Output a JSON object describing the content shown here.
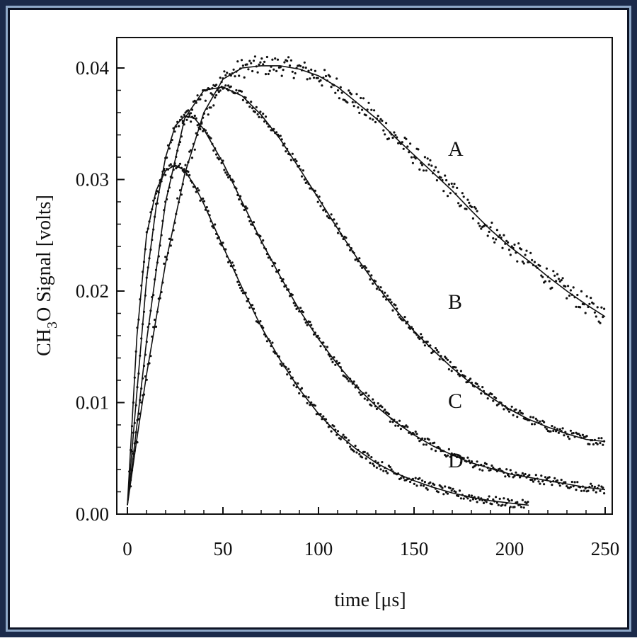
{
  "chart_data": {
    "type": "scatter",
    "title": "",
    "xlabel": "time [μs]",
    "ylabel_main": "CH",
    "ylabel_sub": "3",
    "ylabel_rest": "O Signal [volts]",
    "xlim": [
      0,
      250
    ],
    "ylim": [
      0.0,
      0.042
    ],
    "xticks": [
      "0",
      "50",
      "100",
      "150",
      "200",
      "250"
    ],
    "yticks": [
      "0.00",
      "0.01",
      "0.02",
      "0.03",
      "0.04"
    ],
    "grid": false,
    "legend": "none",
    "series": [
      {
        "name": "A",
        "x": [
          0,
          5,
          10,
          20,
          30,
          40,
          50,
          60,
          70,
          80,
          90,
          100,
          110,
          120,
          130,
          140,
          150,
          160,
          170,
          180,
          190,
          200,
          210,
          220,
          230,
          240,
          250
        ],
        "y": [
          0.0008,
          0.0068,
          0.0125,
          0.0225,
          0.0305,
          0.036,
          0.039,
          0.04,
          0.0402,
          0.0402,
          0.0399,
          0.0393,
          0.0383,
          0.0369,
          0.0355,
          0.0338,
          0.0322,
          0.0306,
          0.029,
          0.0272,
          0.0255,
          0.024,
          0.0227,
          0.0213,
          0.02,
          0.0188,
          0.0177
        ]
      },
      {
        "name": "B",
        "x": [
          0,
          5,
          10,
          20,
          30,
          40,
          50,
          60,
          70,
          80,
          90,
          100,
          110,
          120,
          130,
          140,
          150,
          160,
          170,
          180,
          190,
          200,
          210,
          220,
          230,
          240,
          250
        ],
        "y": [
          0.0008,
          0.008,
          0.0155,
          0.028,
          0.0355,
          0.038,
          0.0383,
          0.0375,
          0.0358,
          0.0336,
          0.031,
          0.0283,
          0.0256,
          0.023,
          0.0206,
          0.0184,
          0.0164,
          0.0147,
          0.0131,
          0.0117,
          0.0105,
          0.0094,
          0.0085,
          0.0078,
          0.0072,
          0.0067,
          0.0065
        ]
      },
      {
        "name": "C",
        "x": [
          0,
          5,
          10,
          15,
          20,
          25,
          30,
          35,
          40,
          50,
          60,
          70,
          80,
          90,
          100,
          110,
          120,
          130,
          140,
          150,
          160,
          170,
          180,
          190,
          200,
          210,
          220,
          230,
          240,
          250
        ],
        "y": [
          0.0008,
          0.011,
          0.021,
          0.0275,
          0.032,
          0.0348,
          0.0357,
          0.0355,
          0.0345,
          0.0315,
          0.028,
          0.0245,
          0.0213,
          0.0183,
          0.0157,
          0.0134,
          0.0114,
          0.0097,
          0.0083,
          0.0071,
          0.0061,
          0.0053,
          0.0046,
          0.0041,
          0.0036,
          0.0033,
          0.003,
          0.0027,
          0.0024,
          0.0022
        ]
      },
      {
        "name": "D",
        "x": [
          0,
          5,
          10,
          15,
          20,
          25,
          30,
          35,
          40,
          50,
          60,
          70,
          80,
          90,
          100,
          110,
          120,
          130,
          140,
          150,
          160,
          170,
          180,
          190,
          200,
          210
        ],
        "y": [
          0.0008,
          0.016,
          0.025,
          0.029,
          0.0308,
          0.0313,
          0.0308,
          0.0295,
          0.0278,
          0.024,
          0.0203,
          0.0168,
          0.0138,
          0.0112,
          0.009,
          0.0072,
          0.0058,
          0.0046,
          0.0037,
          0.003,
          0.0024,
          0.0019,
          0.0015,
          0.0012,
          0.001,
          0.0008
        ]
      }
    ]
  }
}
